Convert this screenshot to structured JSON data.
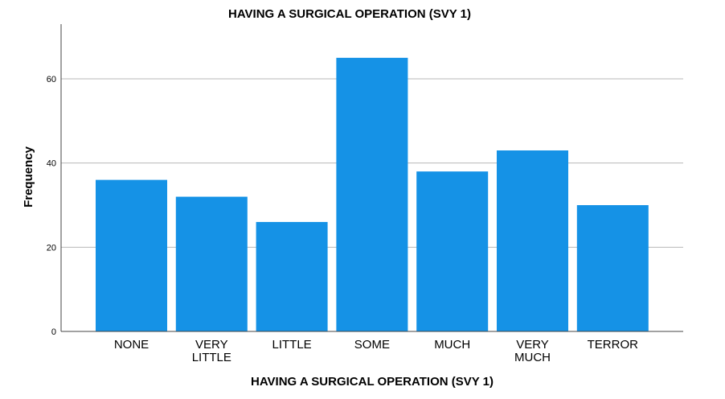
{
  "chart_data": {
    "type": "bar",
    "title": "HAVING A SURGICAL OPERATION (SVY 1)",
    "xlabel": "HAVING A SURGICAL OPERATION (SVY 1)",
    "ylabel": "Frequency",
    "categories": [
      "NONE",
      "VERY LITTLE",
      "LITTLE",
      "SOME",
      "MUCH",
      "VERY MUCH",
      "TERROR"
    ],
    "category_lines": [
      [
        "NONE"
      ],
      [
        "VERY",
        "LITTLE"
      ],
      [
        "LITTLE"
      ],
      [
        "SOME"
      ],
      [
        "MUCH"
      ],
      [
        "VERY",
        "MUCH"
      ],
      [
        "TERROR"
      ]
    ],
    "values": [
      36,
      32,
      26,
      65,
      38,
      43,
      30
    ],
    "yticks": [
      0,
      20,
      40,
      60
    ],
    "ylim": [
      0,
      73
    ],
    "grid": true,
    "bar_color": "#1592e6"
  }
}
